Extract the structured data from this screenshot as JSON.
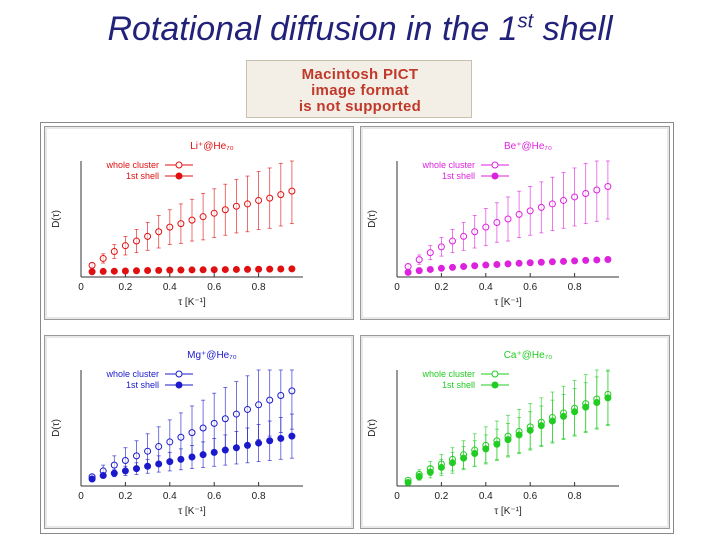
{
  "slide": {
    "title_main": "Rotational diffusion in the 1",
    "title_sup": "st",
    "title_end": " shell"
  },
  "pict_notice": {
    "line1": "Macintosh PICT",
    "line2": "image format",
    "line3": "is not supported"
  },
  "colors": {
    "title": "#22227a",
    "li": "#e01010",
    "be": "#dd22dd",
    "mg": "#1a1acc",
    "ca": "#22cc22"
  },
  "chart_data": [
    {
      "type": "scatter",
      "title": "Li⁺@He₇₀",
      "xlabel": "τ [K⁻¹]",
      "ylabel": "D(τ)",
      "xlim": [
        0,
        1.0
      ],
      "xticks": [
        "0",
        "0.2",
        "0.4",
        "0.6",
        "0.8"
      ],
      "legend_placement": "top-left",
      "color": "#e01010",
      "series": [
        {
          "name": "whole cluster",
          "marker": "open-circle",
          "x": [
            0.05,
            0.1,
            0.15,
            0.2,
            0.25,
            0.3,
            0.35,
            0.4,
            0.45,
            0.5,
            0.55,
            0.6,
            0.65,
            0.7,
            0.75,
            0.8,
            0.85,
            0.9,
            0.95
          ],
          "y": [
            0.1,
            0.16,
            0.22,
            0.27,
            0.31,
            0.35,
            0.39,
            0.43,
            0.46,
            0.49,
            0.52,
            0.55,
            0.58,
            0.61,
            0.63,
            0.66,
            0.68,
            0.71,
            0.74
          ],
          "err": [
            0.02,
            0.04,
            0.06,
            0.08,
            0.1,
            0.12,
            0.14,
            0.15,
            0.17,
            0.18,
            0.2,
            0.21,
            0.22,
            0.23,
            0.24,
            0.25,
            0.26,
            0.27,
            0.28
          ]
        },
        {
          "name": "1st shell",
          "marker": "filled-circle",
          "x": [
            0.05,
            0.1,
            0.15,
            0.2,
            0.25,
            0.3,
            0.35,
            0.4,
            0.45,
            0.5,
            0.55,
            0.6,
            0.65,
            0.7,
            0.75,
            0.8,
            0.85,
            0.9,
            0.95
          ],
          "y": [
            0.045,
            0.048,
            0.05,
            0.052,
            0.054,
            0.056,
            0.057,
            0.059,
            0.06,
            0.061,
            0.062,
            0.063,
            0.064,
            0.065,
            0.066,
            0.067,
            0.068,
            0.069,
            0.07
          ],
          "err": [
            0.005,
            0.005,
            0.005,
            0.005,
            0.005,
            0.005,
            0.005,
            0.005,
            0.005,
            0.005,
            0.005,
            0.005,
            0.005,
            0.005,
            0.005,
            0.005,
            0.005,
            0.005,
            0.005
          ]
        }
      ]
    },
    {
      "type": "scatter",
      "title": "Be⁺@He₇₀",
      "xlabel": "τ [K⁻¹]",
      "ylabel": "D(τ)",
      "xlim": [
        0,
        1.0
      ],
      "xticks": [
        "0",
        "0.2",
        "0.4",
        "0.6",
        "0.8"
      ],
      "legend_placement": "top-left",
      "color": "#dd22dd",
      "series": [
        {
          "name": "whole cluster",
          "marker": "open-circle",
          "x": [
            0.05,
            0.1,
            0.15,
            0.2,
            0.25,
            0.3,
            0.35,
            0.4,
            0.45,
            0.5,
            0.55,
            0.6,
            0.65,
            0.7,
            0.75,
            0.8,
            0.85,
            0.9,
            0.95
          ],
          "y": [
            0.09,
            0.15,
            0.21,
            0.26,
            0.31,
            0.35,
            0.39,
            0.43,
            0.47,
            0.5,
            0.54,
            0.57,
            0.6,
            0.63,
            0.66,
            0.69,
            0.72,
            0.75,
            0.78
          ],
          "err": [
            0.02,
            0.04,
            0.06,
            0.08,
            0.1,
            0.12,
            0.14,
            0.16,
            0.17,
            0.19,
            0.2,
            0.21,
            0.22,
            0.23,
            0.24,
            0.25,
            0.26,
            0.27,
            0.28
          ]
        },
        {
          "name": "1st shell",
          "marker": "filled-circle",
          "x": [
            0.05,
            0.1,
            0.15,
            0.2,
            0.25,
            0.3,
            0.35,
            0.4,
            0.45,
            0.5,
            0.55,
            0.6,
            0.65,
            0.7,
            0.75,
            0.8,
            0.85,
            0.9,
            0.95
          ],
          "y": [
            0.04,
            0.055,
            0.065,
            0.075,
            0.083,
            0.09,
            0.097,
            0.103,
            0.108,
            0.113,
            0.118,
            0.123,
            0.127,
            0.131,
            0.135,
            0.139,
            0.143,
            0.147,
            0.151
          ],
          "err": [
            0.005,
            0.006,
            0.007,
            0.008,
            0.009,
            0.01,
            0.011,
            0.012,
            0.013,
            0.014,
            0.015,
            0.016,
            0.017,
            0.018,
            0.019,
            0.02,
            0.021,
            0.022,
            0.023
          ]
        }
      ]
    },
    {
      "type": "scatter",
      "title": "Mg⁺@He₇₀",
      "xlabel": "τ [K⁻¹]",
      "ylabel": "D(τ)",
      "xlim": [
        0,
        1.0
      ],
      "xticks": [
        "0",
        "0.2",
        "0.4",
        "0.6",
        "0.8"
      ],
      "legend_placement": "top-left",
      "color": "#1a1acc",
      "series": [
        {
          "name": "whole cluster",
          "marker": "open-circle",
          "x": [
            0.05,
            0.1,
            0.15,
            0.2,
            0.25,
            0.3,
            0.35,
            0.4,
            0.45,
            0.5,
            0.55,
            0.6,
            0.65,
            0.7,
            0.75,
            0.8,
            0.85,
            0.9,
            0.95
          ],
          "y": [
            0.08,
            0.13,
            0.18,
            0.22,
            0.26,
            0.3,
            0.34,
            0.38,
            0.42,
            0.46,
            0.5,
            0.54,
            0.58,
            0.62,
            0.66,
            0.7,
            0.74,
            0.78,
            0.82
          ],
          "err": [
            0.02,
            0.05,
            0.08,
            0.11,
            0.13,
            0.15,
            0.17,
            0.19,
            0.21,
            0.23,
            0.24,
            0.26,
            0.27,
            0.28,
            0.29,
            0.3,
            0.31,
            0.32,
            0.33
          ]
        },
        {
          "name": "1st shell",
          "marker": "filled-circle",
          "x": [
            0.05,
            0.1,
            0.15,
            0.2,
            0.25,
            0.3,
            0.35,
            0.4,
            0.45,
            0.5,
            0.55,
            0.6,
            0.65,
            0.7,
            0.75,
            0.8,
            0.85,
            0.9,
            0.95
          ],
          "y": [
            0.06,
            0.09,
            0.11,
            0.13,
            0.15,
            0.17,
            0.19,
            0.21,
            0.23,
            0.25,
            0.27,
            0.29,
            0.31,
            0.33,
            0.35,
            0.37,
            0.39,
            0.41,
            0.43
          ],
          "err": [
            0.01,
            0.02,
            0.03,
            0.04,
            0.05,
            0.06,
            0.07,
            0.08,
            0.09,
            0.1,
            0.11,
            0.12,
            0.13,
            0.14,
            0.15,
            0.16,
            0.17,
            0.18,
            0.19
          ]
        }
      ]
    },
    {
      "type": "scatter",
      "title": "Ca⁺@He₇₀",
      "xlabel": "τ [K⁻¹]",
      "ylabel": "D(τ)",
      "xlim": [
        0,
        1.0
      ],
      "xticks": [
        "0",
        "0.2",
        "0.4",
        "0.6",
        "0.8"
      ],
      "legend_placement": "top-left",
      "color": "#22cc22",
      "series": [
        {
          "name": "whole cluster",
          "marker": "open-circle",
          "x": [
            0.05,
            0.1,
            0.15,
            0.2,
            0.25,
            0.3,
            0.35,
            0.4,
            0.45,
            0.5,
            0.55,
            0.6,
            0.65,
            0.7,
            0.75,
            0.8,
            0.85,
            0.9,
            0.95
          ],
          "y": [
            0.05,
            0.1,
            0.15,
            0.19,
            0.23,
            0.27,
            0.31,
            0.35,
            0.39,
            0.43,
            0.47,
            0.51,
            0.55,
            0.59,
            0.63,
            0.67,
            0.71,
            0.75,
            0.79
          ],
          "err": [
            0.02,
            0.04,
            0.06,
            0.08,
            0.1,
            0.12,
            0.14,
            0.16,
            0.17,
            0.18,
            0.19,
            0.2,
            0.21,
            0.22,
            0.23,
            0.24,
            0.25,
            0.26,
            0.27
          ]
        },
        {
          "name": "1st shell",
          "marker": "filled-circle",
          "x": [
            0.05,
            0.1,
            0.15,
            0.2,
            0.25,
            0.3,
            0.35,
            0.4,
            0.45,
            0.5,
            0.55,
            0.6,
            0.65,
            0.7,
            0.75,
            0.8,
            0.85,
            0.9,
            0.95
          ],
          "y": [
            0.03,
            0.08,
            0.12,
            0.16,
            0.2,
            0.24,
            0.28,
            0.32,
            0.36,
            0.4,
            0.44,
            0.48,
            0.52,
            0.56,
            0.6,
            0.64,
            0.68,
            0.72,
            0.76
          ],
          "err": [
            0.01,
            0.03,
            0.05,
            0.07,
            0.09,
            0.1,
            0.11,
            0.12,
            0.13,
            0.14,
            0.15,
            0.16,
            0.17,
            0.18,
            0.19,
            0.2,
            0.21,
            0.22,
            0.23
          ]
        }
      ]
    }
  ]
}
